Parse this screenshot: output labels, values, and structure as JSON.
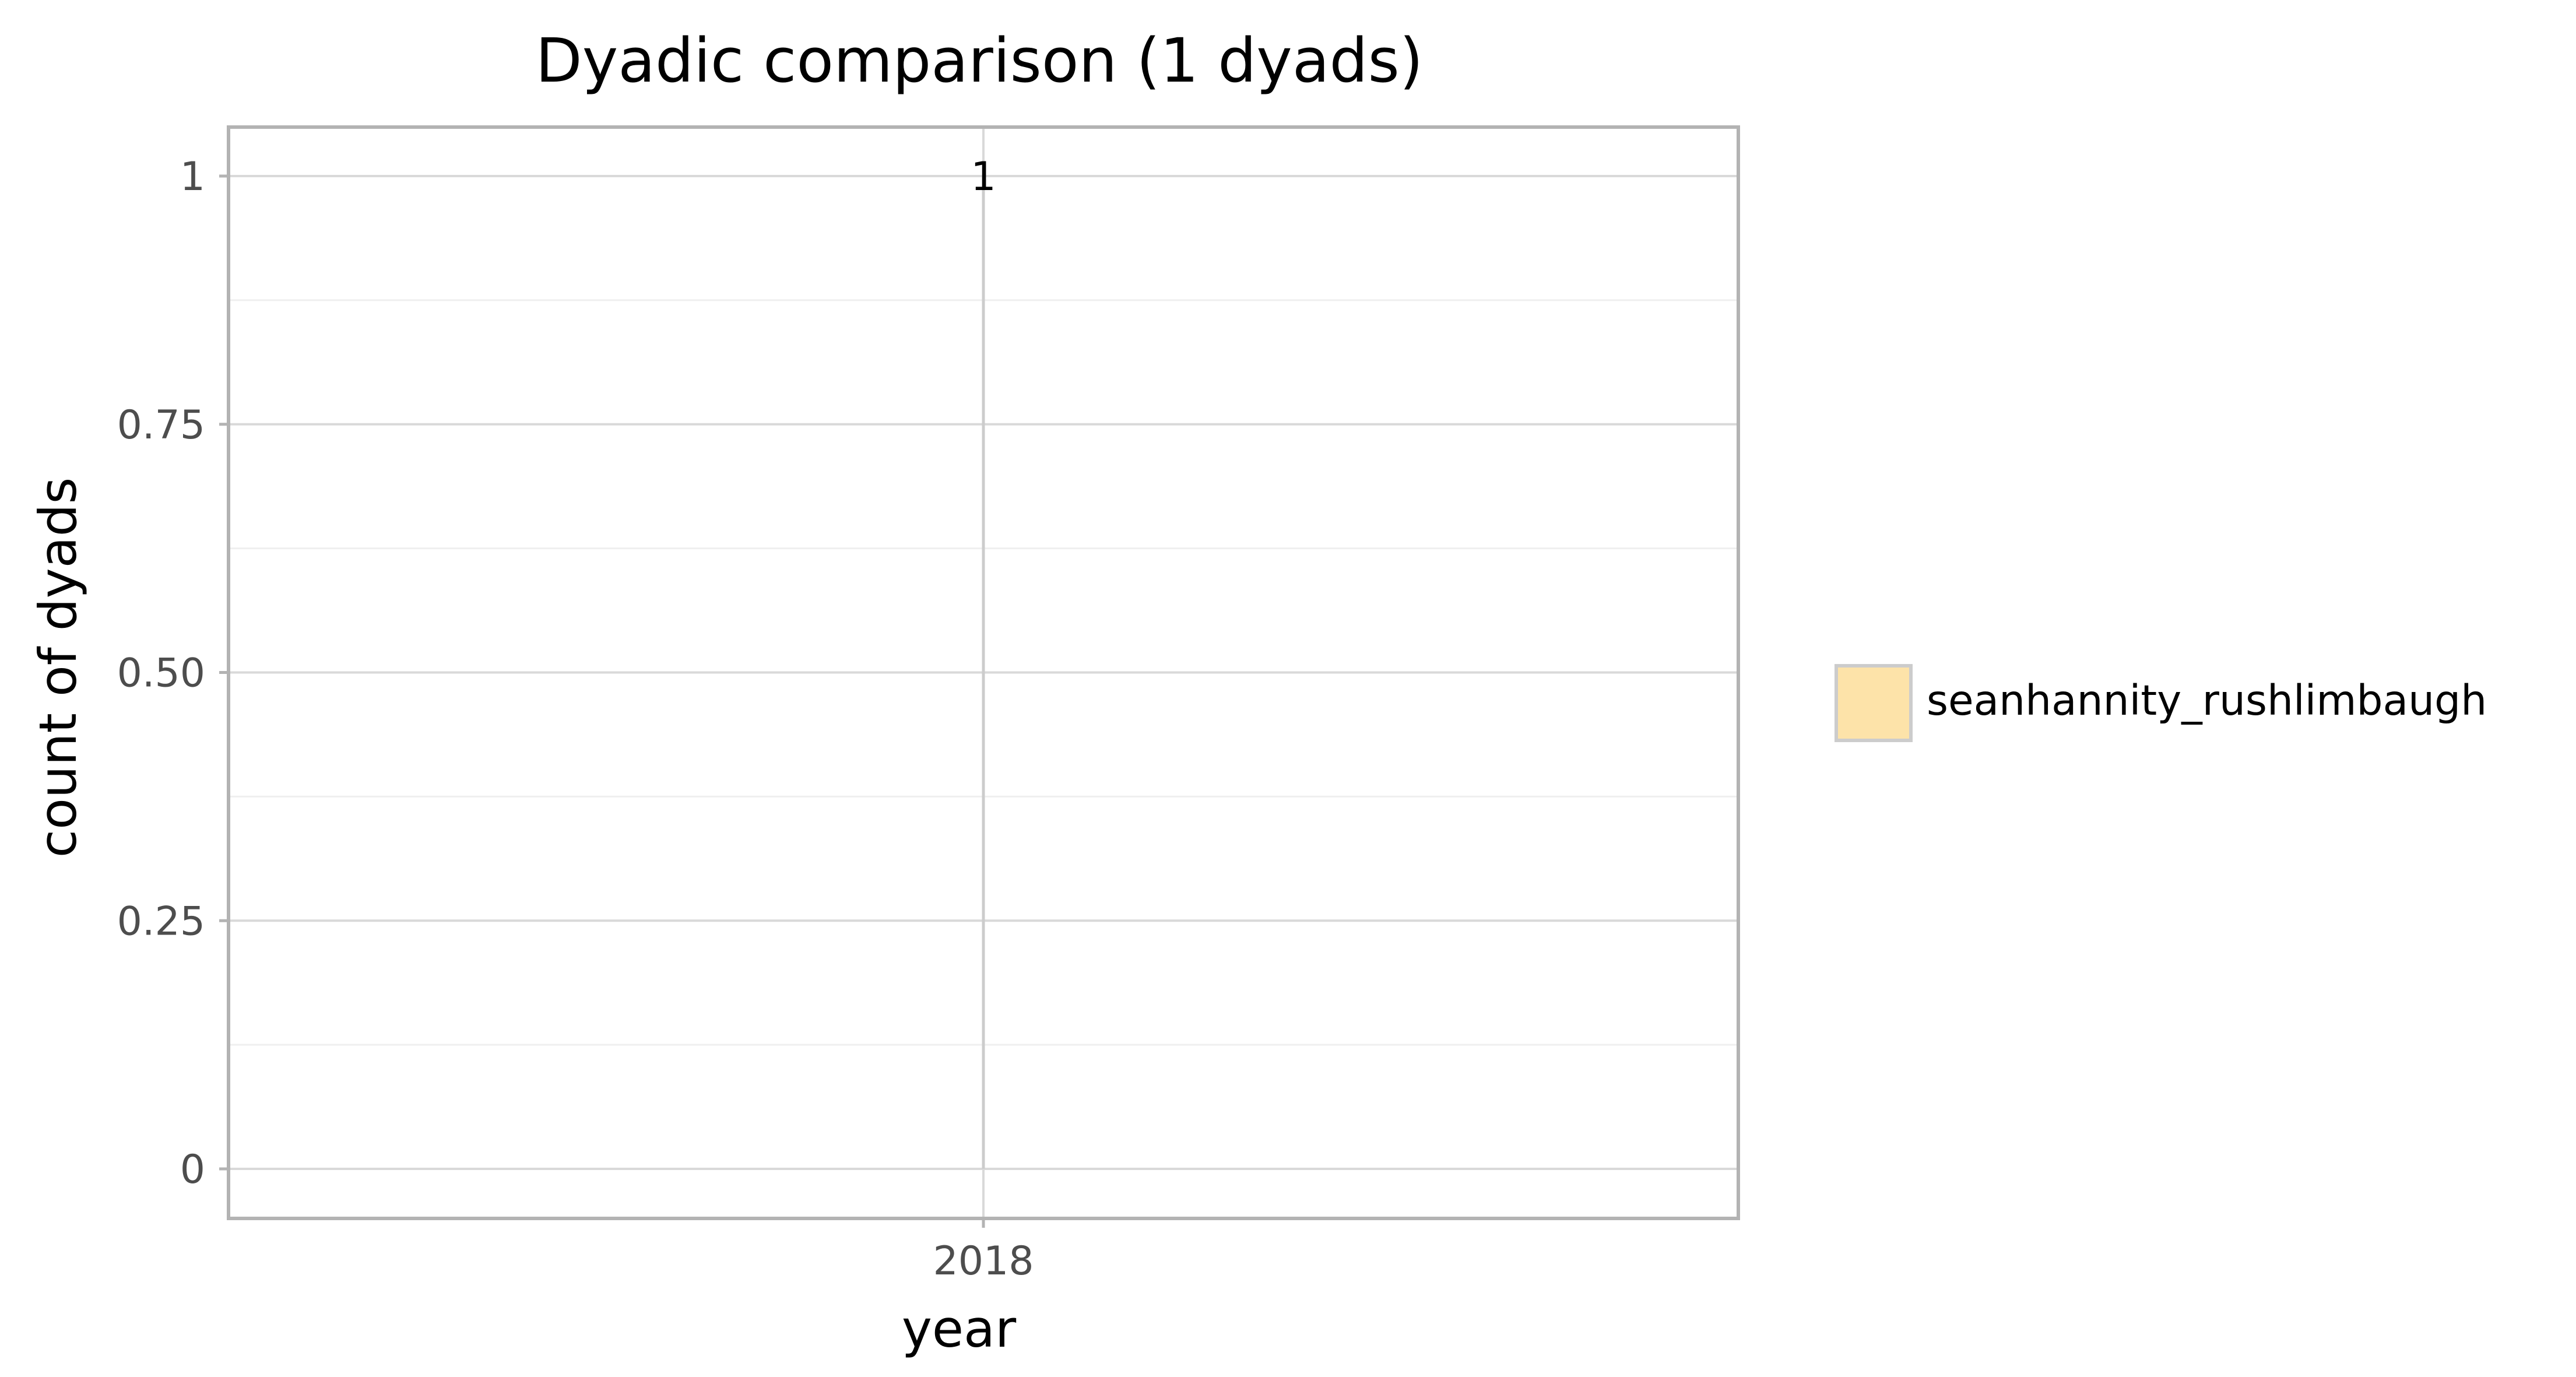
{
  "chart_data": {
    "type": "bar",
    "title": "Dyadic comparison (1 dyads)",
    "xlabel": "year",
    "ylabel": "count of dyads",
    "categories": [
      "2018"
    ],
    "series": [
      {
        "name": "seanhannity_rushlimbaugh",
        "values": [
          1
        ]
      }
    ],
    "data_labels": [
      "1"
    ],
    "ylim": [
      0,
      1
    ],
    "y_ticks": [
      0,
      0.25,
      0.5,
      0.75,
      1
    ],
    "y_tick_labels": [
      "0",
      "0.25",
      "0.50",
      "0.75",
      "1"
    ],
    "grid": true,
    "legend_position": "right",
    "colors": {
      "series_fill": "#fde3a9",
      "series_stroke": "#cccccc",
      "panel_border": "#b3b3b3",
      "grid_major": "#d9d9d9",
      "grid_minor": "#efefef",
      "tick_text": "#4d4d4d"
    }
  }
}
